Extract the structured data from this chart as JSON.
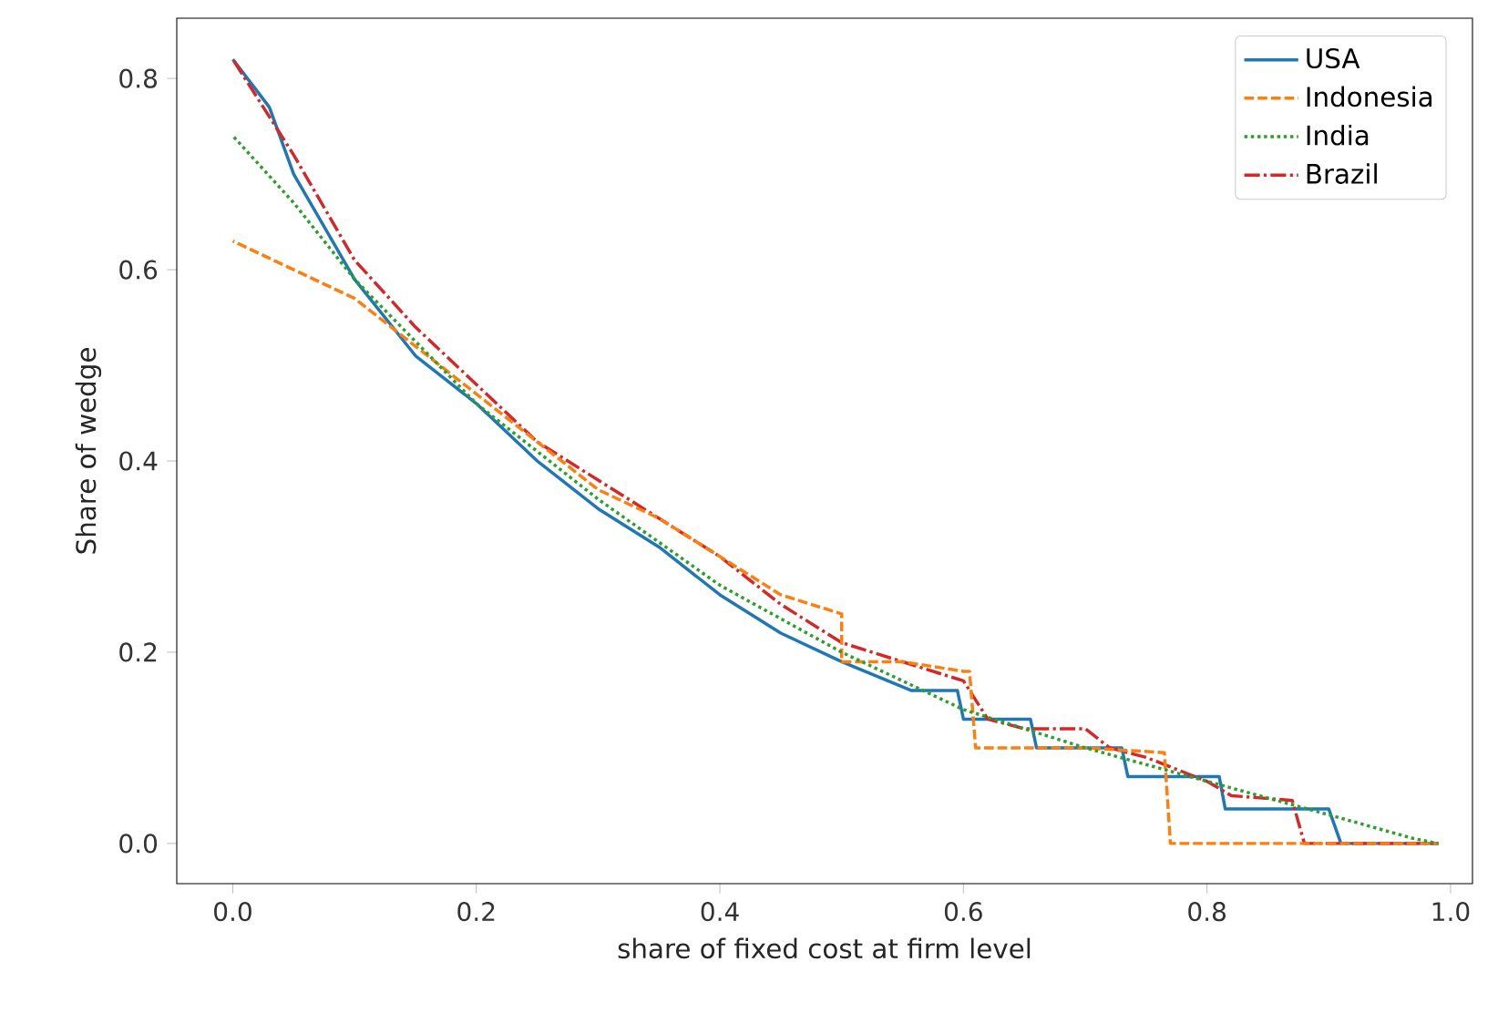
{
  "chart_data": {
    "type": "line",
    "xlabel": "share of fixed cost at firm level",
    "ylabel": "Share of wedge",
    "xlim": [
      -0.046,
      1.018
    ],
    "ylim": [
      -0.042,
      0.863
    ],
    "xticks": [
      {
        "value": 0,
        "label": "0.0"
      },
      {
        "value": 0.2,
        "label": "0.2"
      },
      {
        "value": 0.4,
        "label": "0.4"
      },
      {
        "value": 0.6,
        "label": "0.6"
      },
      {
        "value": 0.8,
        "label": "0.8"
      },
      {
        "value": 1,
        "label": "1.0"
      }
    ],
    "yticks": [
      {
        "value": 0,
        "label": "0.0"
      },
      {
        "value": 0.2,
        "label": "0.2"
      },
      {
        "value": 0.4,
        "label": "0.4"
      },
      {
        "value": 0.6,
        "label": "0.6"
      },
      {
        "value": 0.8,
        "label": "0.8"
      }
    ],
    "legend": "top right",
    "grid": false,
    "series": [
      {
        "name": "USA",
        "color": "#1f77b4",
        "line_style": "solid",
        "x": [
          0,
          0.03,
          0.05,
          0.1,
          0.15,
          0.2,
          0.25,
          0.3,
          0.35,
          0.4,
          0.45,
          0.5,
          0.557,
          0.595,
          0.6,
          0.655,
          0.66,
          0.73,
          0.735,
          0.81,
          0.815,
          0.9,
          0.91,
          0.99
        ],
        "values": [
          0.82,
          0.77,
          0.7,
          0.59,
          0.51,
          0.46,
          0.4,
          0.35,
          0.31,
          0.26,
          0.22,
          0.19,
          0.16,
          0.16,
          0.13,
          0.13,
          0.1,
          0.1,
          0.07,
          0.07,
          0.036,
          0.036,
          0,
          0
        ]
      },
      {
        "name": "Indonesia",
        "color": "#ff7f0e",
        "line_style": "dashed",
        "x": [
          0,
          0.1,
          0.15,
          0.2,
          0.25,
          0.3,
          0.35,
          0.4,
          0.45,
          0.5,
          0.5,
          0.55,
          0.6,
          0.605,
          0.61,
          0.7,
          0.765,
          0.77,
          0.99
        ],
        "values": [
          0.63,
          0.57,
          0.52,
          0.47,
          0.42,
          0.37,
          0.34,
          0.3,
          0.26,
          0.24,
          0.19,
          0.19,
          0.18,
          0.18,
          0.1,
          0.1,
          0.095,
          0,
          0
        ]
      },
      {
        "name": "India",
        "color": "#2ca02c",
        "line_style": "dotted",
        "x": [
          0,
          0.05,
          0.1,
          0.2,
          0.3,
          0.4,
          0.5,
          0.6,
          0.7,
          0.8,
          0.9,
          0.97,
          0.99
        ],
        "values": [
          0.74,
          0.67,
          0.59,
          0.46,
          0.36,
          0.27,
          0.2,
          0.14,
          0.1,
          0.065,
          0.03,
          0.005,
          0
        ]
      },
      {
        "name": "Brazil",
        "color": "#d62728",
        "line_style": "dashdot",
        "x": [
          0,
          0.05,
          0.1,
          0.15,
          0.2,
          0.25,
          0.3,
          0.35,
          0.4,
          0.45,
          0.5,
          0.55,
          0.6,
          0.62,
          0.65,
          0.7,
          0.72,
          0.75,
          0.77,
          0.8,
          0.82,
          0.87,
          0.88,
          0.99
        ],
        "values": [
          0.82,
          0.72,
          0.61,
          0.54,
          0.48,
          0.42,
          0.38,
          0.34,
          0.3,
          0.25,
          0.21,
          0.19,
          0.17,
          0.13,
          0.12,
          0.12,
          0.1,
          0.09,
          0.08,
          0.065,
          0.05,
          0.045,
          0,
          0
        ]
      }
    ]
  }
}
